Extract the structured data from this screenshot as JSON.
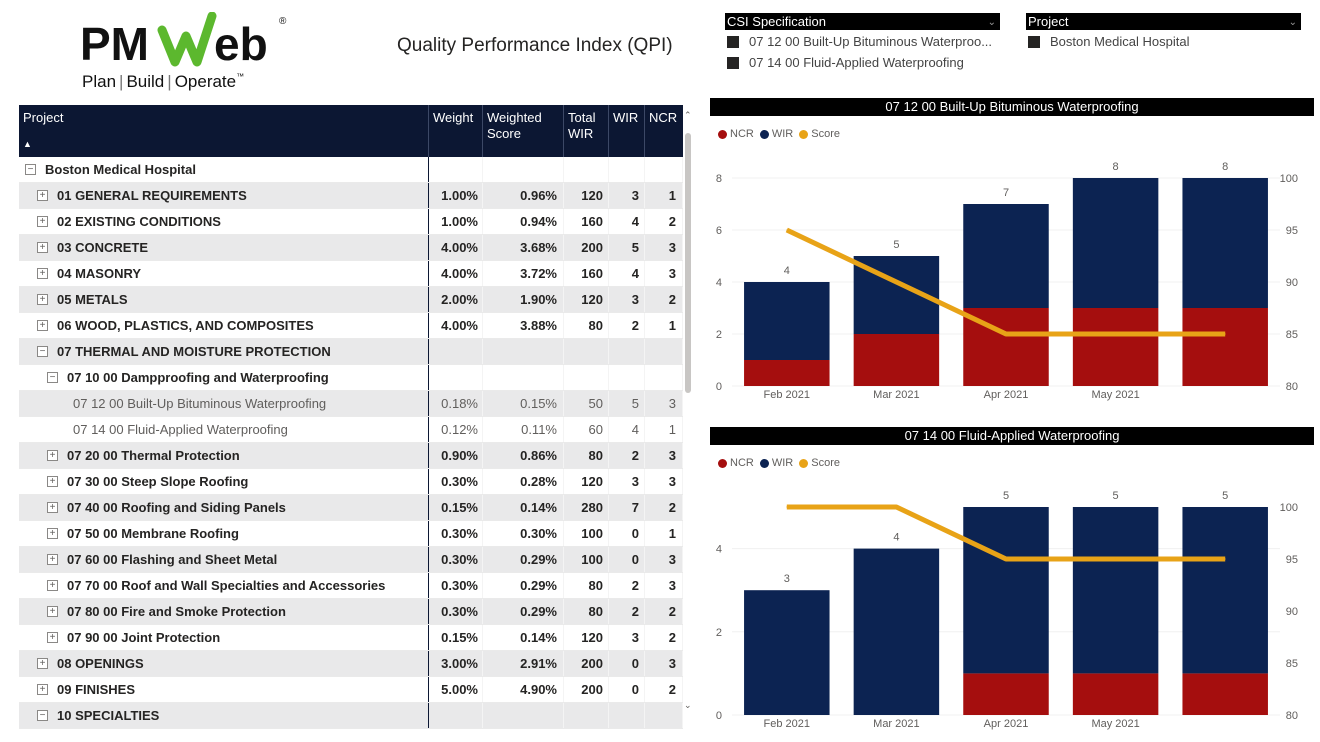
{
  "logo": {
    "brand": "PMWeb",
    "tag1": "Plan",
    "tag2": "Build",
    "tag3": "Operate"
  },
  "report_title": "Quality Performance Index (QPI)",
  "slicers": {
    "csi": {
      "title": "CSI Specification",
      "items": [
        "07 12 00 Built-Up Bituminous Waterproo...",
        "07 14 00 Fluid-Applied Waterproofing"
      ]
    },
    "project": {
      "title": "Project",
      "items": [
        "Boston Medical Hospital"
      ]
    }
  },
  "matrix": {
    "headers": {
      "project": "Project",
      "weight": "Weight",
      "weighted_score": "Weighted Score",
      "total_wir": "Total WIR",
      "wir": "WIR",
      "ncr": "NCR"
    },
    "rows": [
      {
        "level": 0,
        "toggle": "−",
        "label": "Boston Medical Hospital",
        "w": "",
        "ws": "",
        "tw": "",
        "wir": "",
        "ncr": "",
        "bold": true,
        "shade": false
      },
      {
        "level": 1,
        "toggle": "+",
        "label": "01 GENERAL REQUIREMENTS",
        "w": "1.00%",
        "ws": "0.96%",
        "tw": "120",
        "wir": "3",
        "ncr": "1",
        "bold": true,
        "shade": true
      },
      {
        "level": 1,
        "toggle": "+",
        "label": "02 EXISTING CONDITIONS",
        "w": "1.00%",
        "ws": "0.94%",
        "tw": "160",
        "wir": "4",
        "ncr": "2",
        "bold": true,
        "shade": false
      },
      {
        "level": 1,
        "toggle": "+",
        "label": "03 CONCRETE",
        "w": "4.00%",
        "ws": "3.68%",
        "tw": "200",
        "wir": "5",
        "ncr": "3",
        "bold": true,
        "shade": true
      },
      {
        "level": 1,
        "toggle": "+",
        "label": "04 MASONRY",
        "w": "4.00%",
        "ws": "3.72%",
        "tw": "160",
        "wir": "4",
        "ncr": "3",
        "bold": true,
        "shade": false
      },
      {
        "level": 1,
        "toggle": "+",
        "label": "05 METALS",
        "w": "2.00%",
        "ws": "1.90%",
        "tw": "120",
        "wir": "3",
        "ncr": "2",
        "bold": true,
        "shade": true
      },
      {
        "level": 1,
        "toggle": "+",
        "label": "06 WOOD, PLASTICS, AND COMPOSITES",
        "w": "4.00%",
        "ws": "3.88%",
        "tw": "80",
        "wir": "2",
        "ncr": "1",
        "bold": true,
        "shade": false
      },
      {
        "level": 1,
        "toggle": "−",
        "label": "07 THERMAL AND MOISTURE PROTECTION",
        "w": "",
        "ws": "",
        "tw": "",
        "wir": "",
        "ncr": "",
        "bold": true,
        "shade": true
      },
      {
        "level": 2,
        "toggle": "−",
        "label": "07 10 00 Dampproofing and Waterproofing",
        "w": "",
        "ws": "",
        "tw": "",
        "wir": "",
        "ncr": "",
        "bold": true,
        "shade": false
      },
      {
        "level": 3,
        "toggle": "",
        "label": "07 12 00 Built-Up Bituminous Waterproofing",
        "w": "0.18%",
        "ws": "0.15%",
        "tw": "50",
        "wir": "5",
        "ncr": "3",
        "bold": false,
        "shade": true
      },
      {
        "level": 3,
        "toggle": "",
        "label": "07 14 00 Fluid-Applied Waterproofing",
        "w": "0.12%",
        "ws": "0.11%",
        "tw": "60",
        "wir": "4",
        "ncr": "1",
        "bold": false,
        "shade": false
      },
      {
        "level": 2,
        "toggle": "+",
        "label": "07 20 00 Thermal Protection",
        "w": "0.90%",
        "ws": "0.86%",
        "tw": "80",
        "wir": "2",
        "ncr": "3",
        "bold": true,
        "shade": true
      },
      {
        "level": 2,
        "toggle": "+",
        "label": "07 30 00 Steep Slope Roofing",
        "w": "0.30%",
        "ws": "0.28%",
        "tw": "120",
        "wir": "3",
        "ncr": "3",
        "bold": true,
        "shade": false
      },
      {
        "level": 2,
        "toggle": "+",
        "label": "07 40 00 Roofing and Siding Panels",
        "w": "0.15%",
        "ws": "0.14%",
        "tw": "280",
        "wir": "7",
        "ncr": "2",
        "bold": true,
        "shade": true
      },
      {
        "level": 2,
        "toggle": "+",
        "label": "07 50 00 Membrane Roofing",
        "w": "0.30%",
        "ws": "0.30%",
        "tw": "100",
        "wir": "0",
        "ncr": "1",
        "bold": true,
        "shade": false
      },
      {
        "level": 2,
        "toggle": "+",
        "label": "07 60 00 Flashing and Sheet Metal",
        "w": "0.30%",
        "ws": "0.29%",
        "tw": "100",
        "wir": "0",
        "ncr": "3",
        "bold": true,
        "shade": true
      },
      {
        "level": 2,
        "toggle": "+",
        "label": "07 70 00 Roof and Wall Specialties and Accessories",
        "w": "0.30%",
        "ws": "0.29%",
        "tw": "80",
        "wir": "2",
        "ncr": "3",
        "bold": true,
        "shade": false
      },
      {
        "level": 2,
        "toggle": "+",
        "label": "07 80 00 Fire and Smoke Protection",
        "w": "0.30%",
        "ws": "0.29%",
        "tw": "80",
        "wir": "2",
        "ncr": "2",
        "bold": true,
        "shade": true
      },
      {
        "level": 2,
        "toggle": "+",
        "label": "07 90 00 Joint Protection",
        "w": "0.15%",
        "ws": "0.14%",
        "tw": "120",
        "wir": "3",
        "ncr": "2",
        "bold": true,
        "shade": false
      },
      {
        "level": 1,
        "toggle": "+",
        "label": "08 OPENINGS",
        "w": "3.00%",
        "ws": "2.91%",
        "tw": "200",
        "wir": "0",
        "ncr": "3",
        "bold": true,
        "shade": true
      },
      {
        "level": 1,
        "toggle": "+",
        "label": "09 FINISHES",
        "w": "5.00%",
        "ws": "4.90%",
        "tw": "200",
        "wir": "0",
        "ncr": "2",
        "bold": true,
        "shade": false
      },
      {
        "level": 1,
        "toggle": "−",
        "label": "10 SPECIALTIES",
        "w": "",
        "ws": "",
        "tw": "",
        "wir": "",
        "ncr": "",
        "bold": true,
        "shade": true
      }
    ]
  },
  "colors": {
    "ncr": "#a50e0e",
    "wir": "#0c2352",
    "score": "#e8a317",
    "header": "#0c1733"
  },
  "chart_data": [
    {
      "type": "bar",
      "title": "07 12 00 Built-Up Bituminous Waterproofing",
      "stacked": true,
      "categories": [
        "Feb 2021",
        "Mar 2021",
        "Apr 2021",
        "May 2021",
        ""
      ],
      "series": [
        {
          "name": "NCR",
          "values": [
            1,
            2,
            3,
            3,
            3
          ]
        },
        {
          "name": "WIR",
          "values": [
            3,
            3,
            4,
            5,
            5
          ]
        },
        {
          "name": "Score",
          "values": [
            95,
            90,
            85,
            85,
            85
          ],
          "axis": "secondary",
          "type": "line"
        }
      ],
      "totals": [
        4,
        5,
        7,
        8,
        8
      ],
      "ylim": [
        0,
        8
      ],
      "yticks": [
        0,
        2,
        4,
        6,
        8
      ],
      "y2lim": [
        80,
        100
      ],
      "y2ticks": [
        80,
        85,
        90,
        95,
        100
      ],
      "legend": "top-left",
      "grid": true
    },
    {
      "type": "bar",
      "title": "07 14 00 Fluid-Applied Waterproofing",
      "stacked": true,
      "categories": [
        "Feb 2021",
        "Mar 2021",
        "Apr 2021",
        "May 2021",
        ""
      ],
      "series": [
        {
          "name": "NCR",
          "values": [
            0,
            0,
            1,
            1,
            1
          ]
        },
        {
          "name": "WIR",
          "values": [
            3,
            4,
            4,
            4,
            4
          ]
        },
        {
          "name": "Score",
          "values": [
            100,
            100,
            95,
            95,
            95
          ],
          "axis": "secondary",
          "type": "line"
        }
      ],
      "totals": [
        3,
        4,
        5,
        5,
        5
      ],
      "ylim": [
        0,
        5
      ],
      "yticks": [
        0,
        2,
        4
      ],
      "y2lim": [
        80,
        100
      ],
      "y2ticks": [
        80,
        85,
        90,
        95,
        100
      ],
      "legend": "top-left",
      "grid": true
    }
  ]
}
